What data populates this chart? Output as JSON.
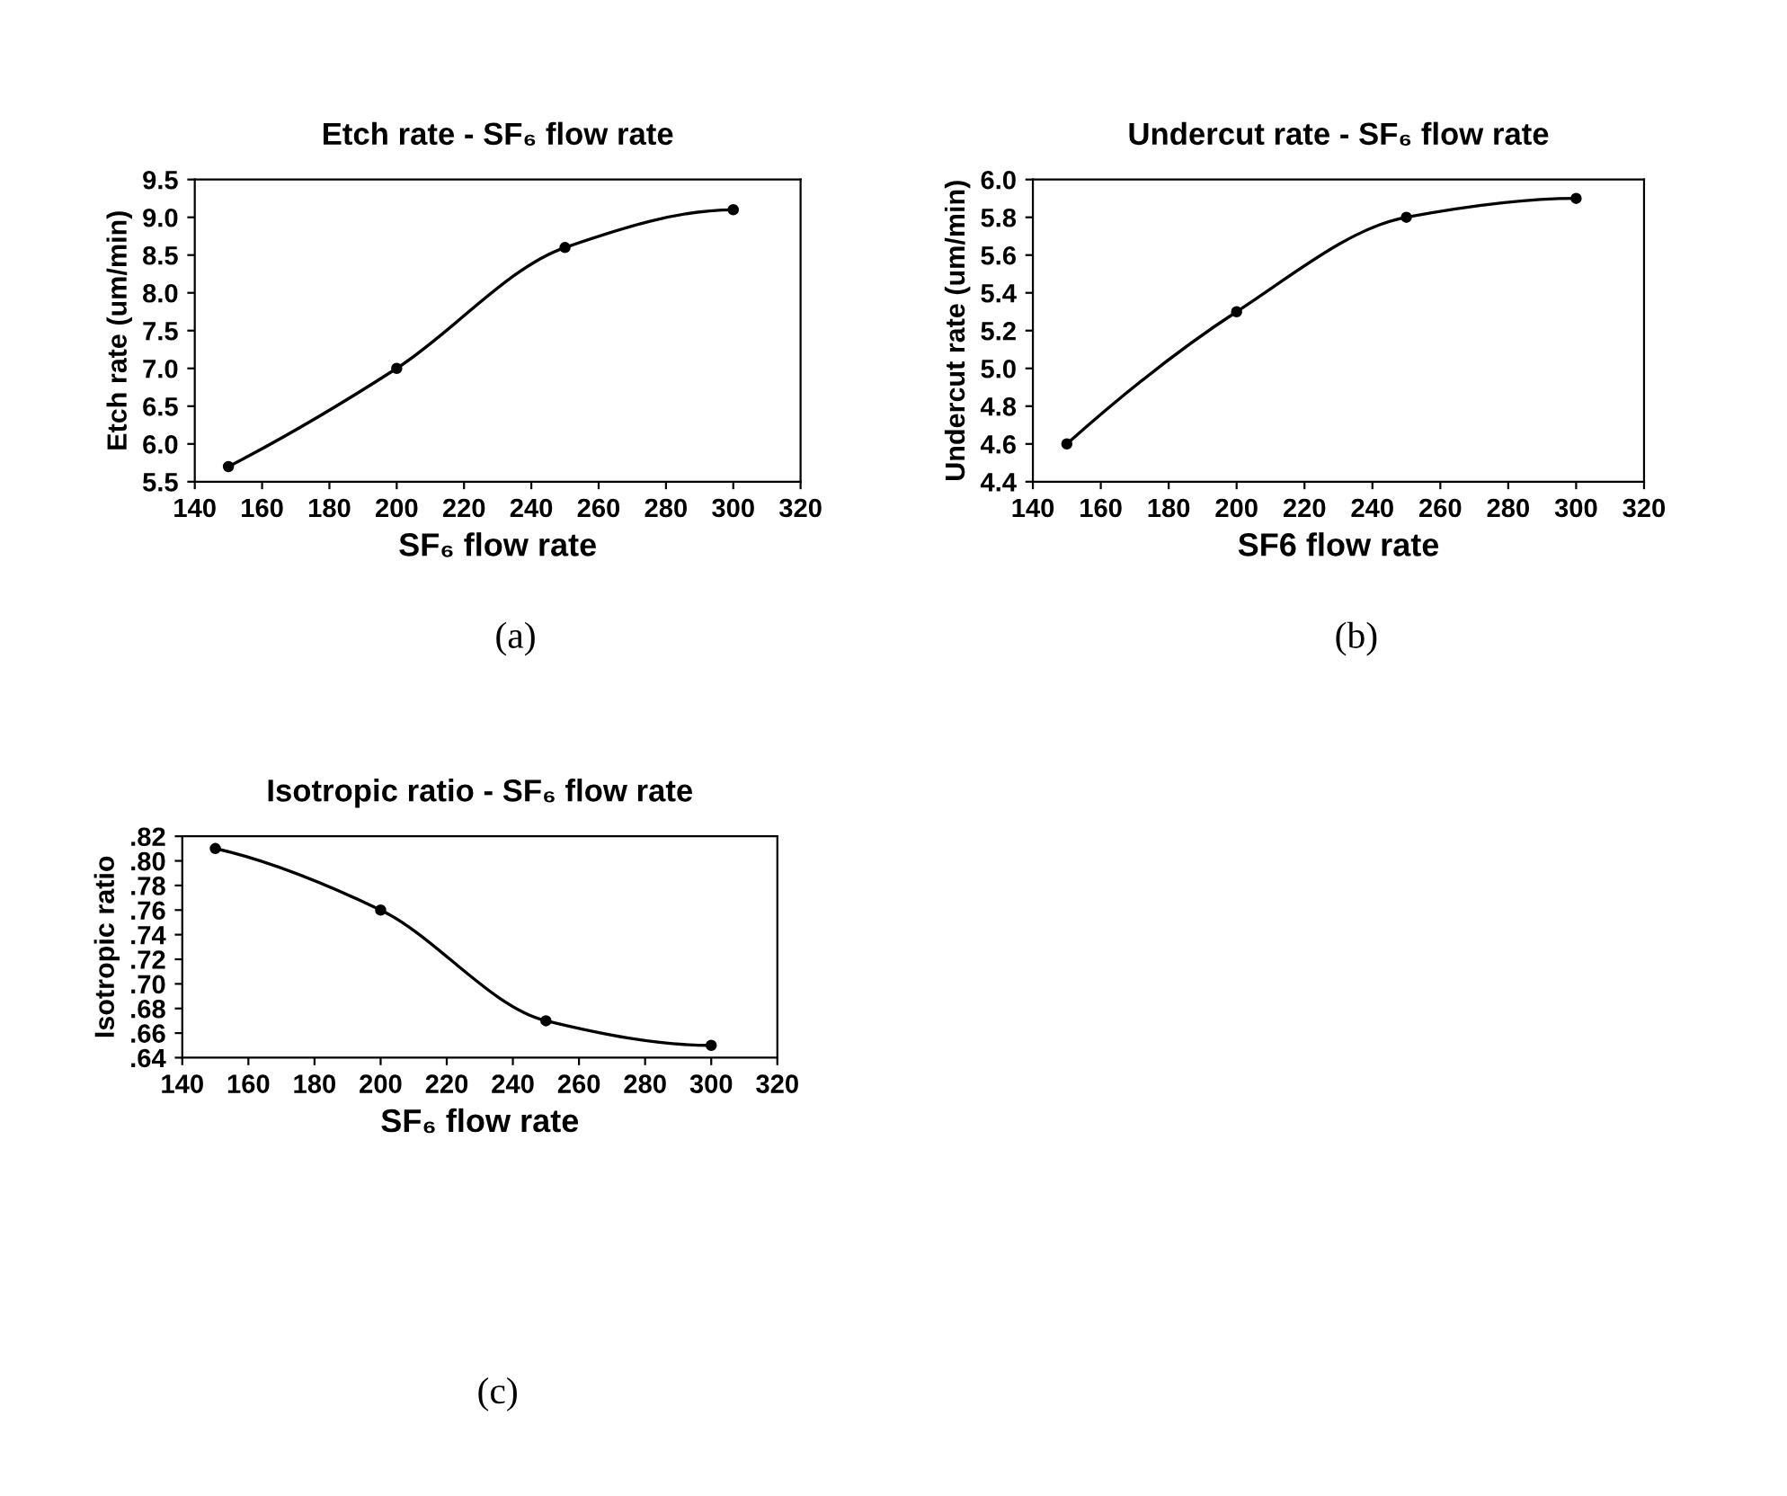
{
  "chart_data": [
    {
      "type": "line",
      "title": "Etch rate - SF₆ flow rate",
      "xlabel": "SF₆ flow rate",
      "ylabel": "Etch rate (um/min)",
      "x": [
        150,
        200,
        250,
        300
      ],
      "series": [
        {
          "color": "#000000",
          "values": [
            5.7,
            7.0,
            8.6,
            9.1
          ]
        }
      ],
      "xlim": [
        140,
        320
      ],
      "xticks": [
        140,
        160,
        180,
        200,
        220,
        240,
        260,
        280,
        300,
        320
      ],
      "ylim": [
        5.5,
        9.5
      ],
      "yticks": [
        5.5,
        {
          "value": 6,
          "label": "6.0"
        },
        6.5,
        {
          "value": 7,
          "label": "7.0"
        },
        7.5,
        {
          "value": 8,
          "label": "8.0"
        },
        8.5,
        {
          "value": 9,
          "label": "9.0"
        },
        9.5
      ],
      "marker": "circle",
      "line_style": "solid",
      "grid": false,
      "legend": false,
      "annotations": [
        "(a)"
      ]
    },
    {
      "type": "line",
      "title": "Undercut rate - SF₆ flow rate",
      "xlabel": "SF6 flow rate",
      "ylabel": "Undercut rate (um/min)",
      "x": [
        150,
        200,
        250,
        300
      ],
      "series": [
        {
          "color": "#000000",
          "values": [
            4.6,
            5.3,
            5.8,
            5.9
          ]
        }
      ],
      "xlim": [
        140,
        320
      ],
      "xticks": [
        140,
        160,
        180,
        200,
        220,
        240,
        260,
        280,
        300,
        320
      ],
      "ylim": [
        4.4,
        6.0
      ],
      "yticks": [
        4.4,
        4.6,
        4.8,
        {
          "value": 5,
          "label": "5.0"
        },
        5.2,
        5.4,
        5.6,
        5.8,
        {
          "value": 6,
          "label": "6.0"
        }
      ],
      "marker": "circle",
      "line_style": "solid",
      "grid": false,
      "legend": false,
      "annotations": [
        "(b)"
      ]
    },
    {
      "type": "line",
      "title": "Isotropic ratio - SF₆ flow rate",
      "xlabel": "SF₆ flow rate",
      "ylabel": "Isotropic ratio",
      "x": [
        150,
        200,
        250,
        300
      ],
      "series": [
        {
          "color": "#000000",
          "values": [
            0.81,
            0.76,
            0.67,
            0.65
          ]
        }
      ],
      "xlim": [
        140,
        320
      ],
      "xticks": [
        140,
        160,
        180,
        200,
        220,
        240,
        260,
        280,
        300,
        320
      ],
      "ylim": [
        0.64,
        0.82
      ],
      "yticks": [
        {
          "value": 0.64,
          "label": ".64"
        },
        {
          "value": 0.66,
          "label": ".66"
        },
        {
          "value": 0.68,
          "label": ".68"
        },
        {
          "value": 0.7,
          "label": ".70"
        },
        {
          "value": 0.72,
          "label": ".72"
        },
        {
          "value": 0.74,
          "label": ".74"
        },
        {
          "value": 0.76,
          "label": ".76"
        },
        {
          "value": 0.78,
          "label": ".78"
        },
        {
          "value": 0.8,
          "label": ".80"
        },
        {
          "value": 0.82,
          "label": ".82"
        }
      ],
      "marker": "circle",
      "line_style": "solid",
      "grid": false,
      "legend": false,
      "annotations": [
        "(c)"
      ]
    }
  ]
}
